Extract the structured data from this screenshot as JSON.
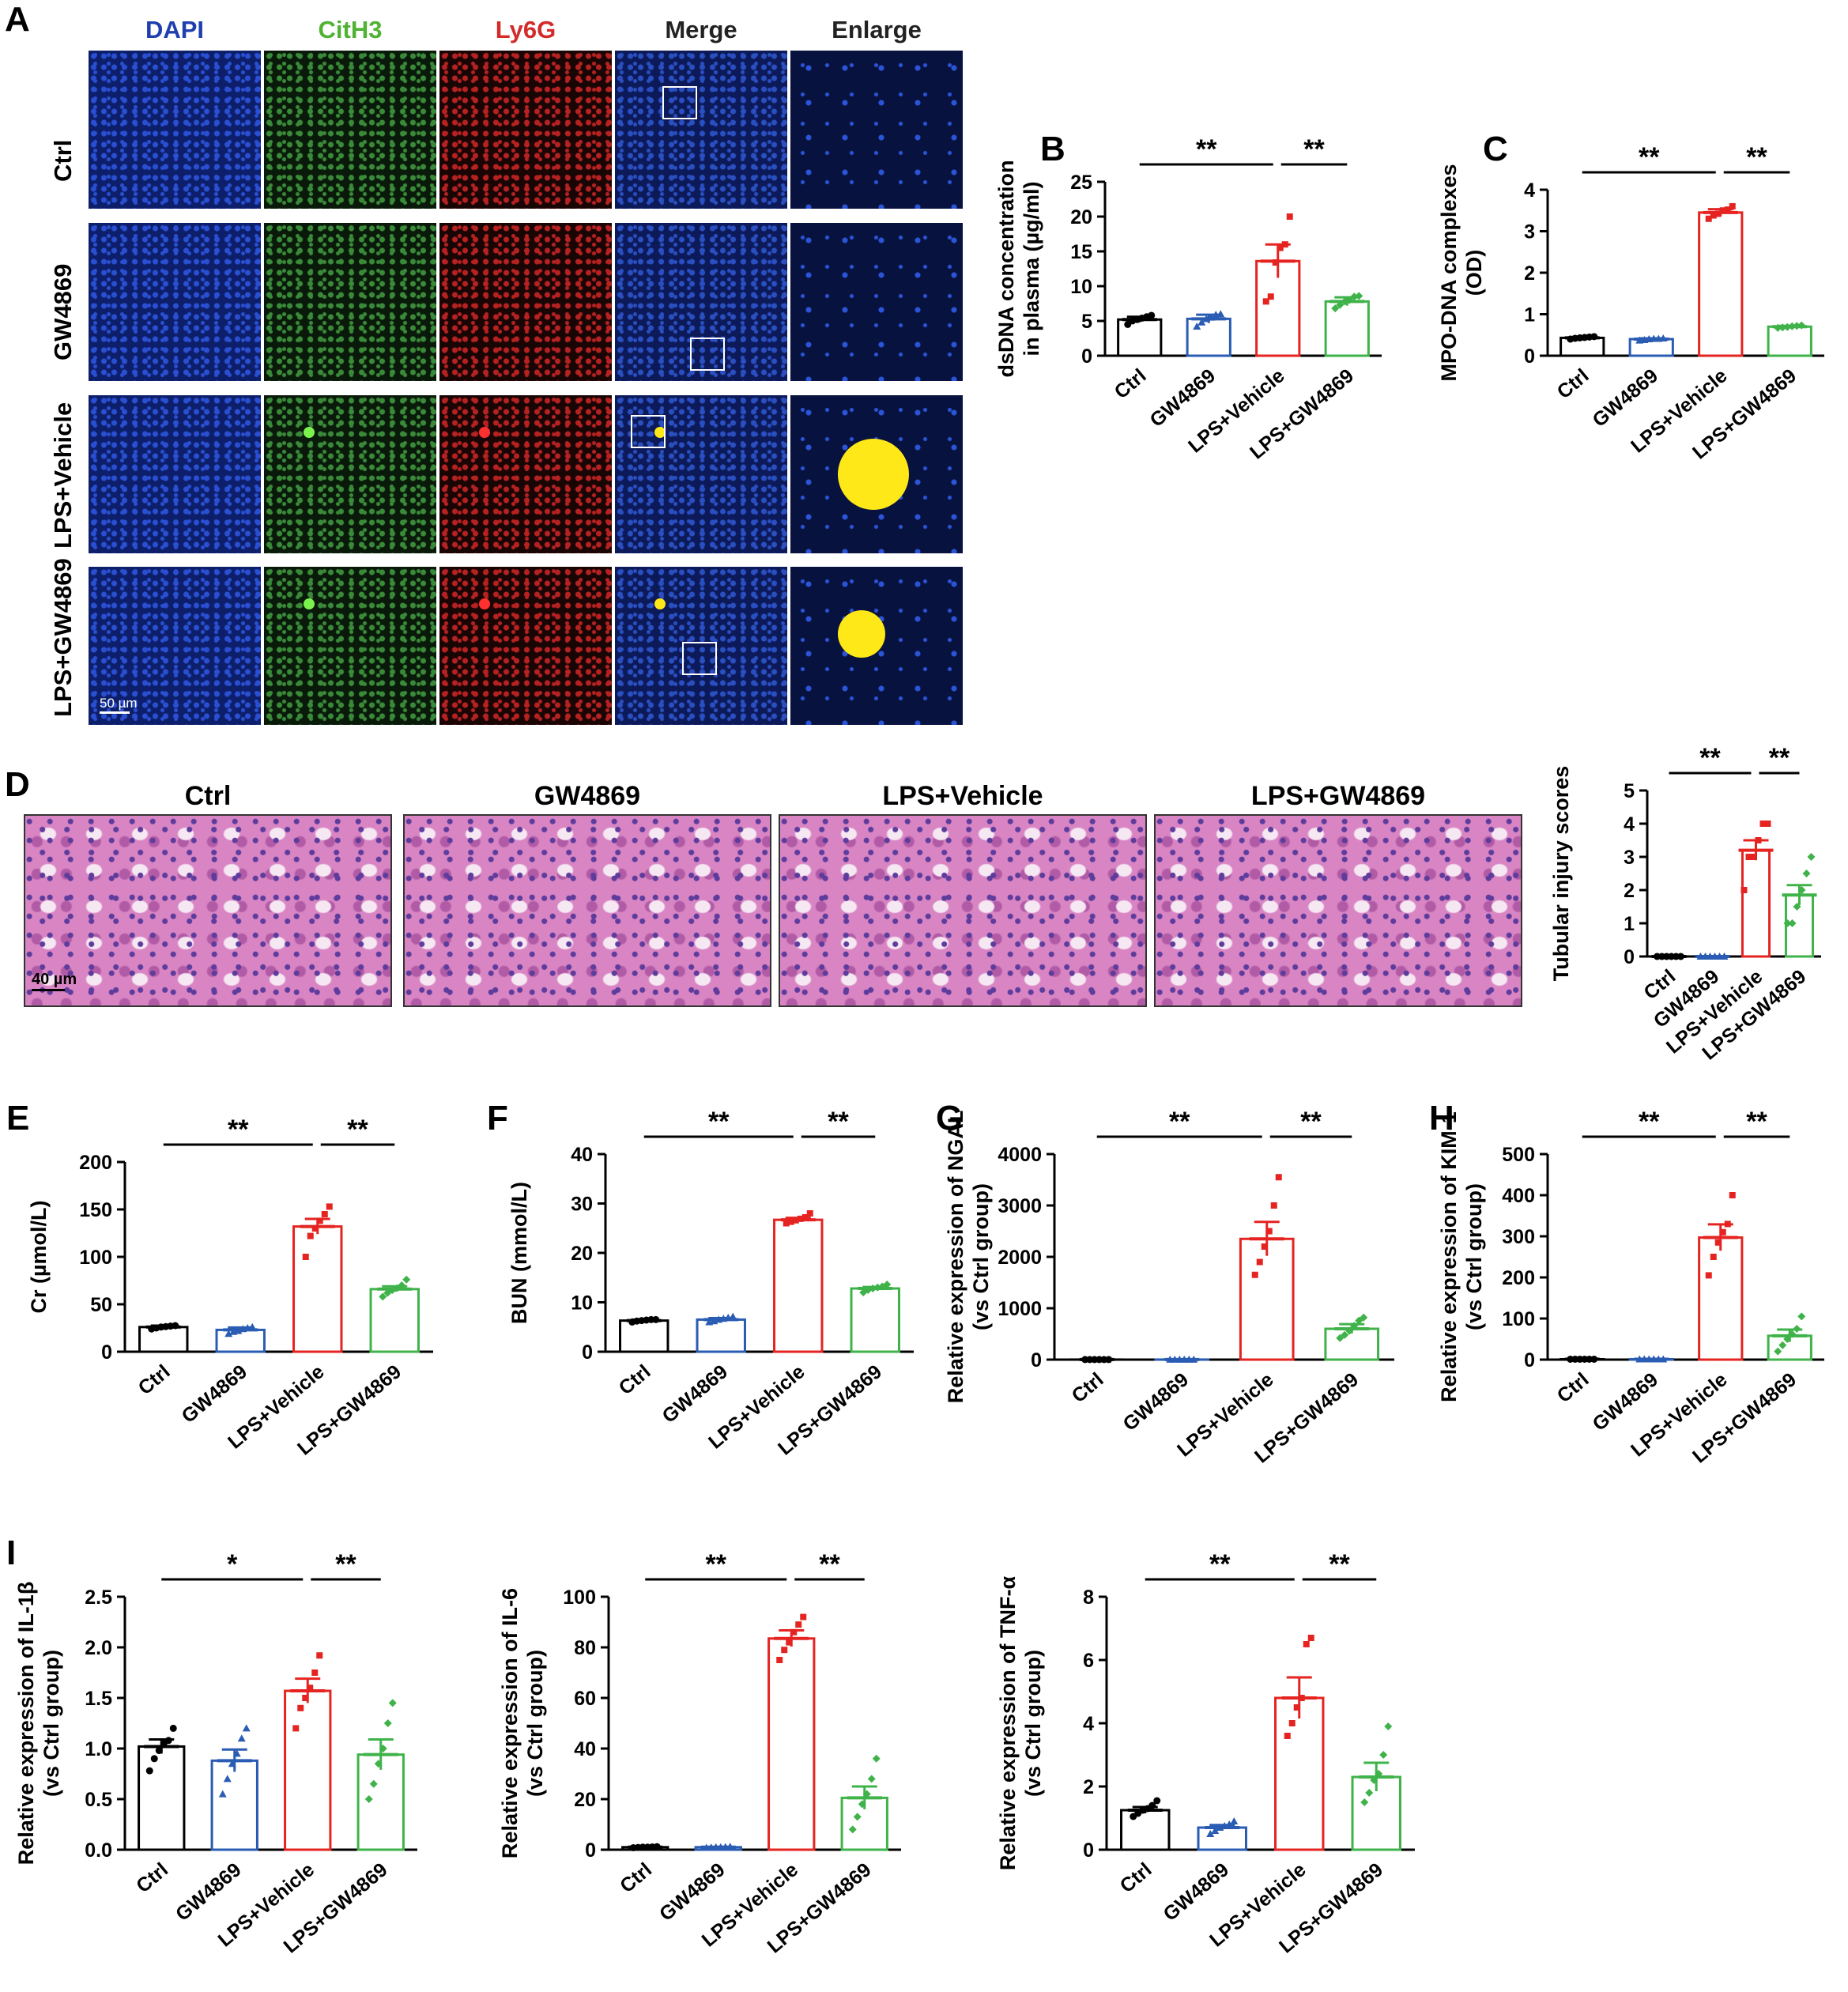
{
  "panel_a": {
    "letter": "A",
    "columns": [
      {
        "label": "DAPI",
        "color": "#1f3fb0"
      },
      {
        "label": "CitH3",
        "color": "#4fb233"
      },
      {
        "label": "Ly6G",
        "color": "#d42a2a"
      },
      {
        "label": "Merge",
        "color": "#222222"
      },
      {
        "label": "Enlarge",
        "color": "#222222"
      }
    ],
    "rows": [
      "Ctrl",
      "GW4869",
      "LPS+Vehicle",
      "LPS+GW4869"
    ],
    "scalebar": "50 µm"
  },
  "panel_d": {
    "letter": "D",
    "images": [
      "Ctrl",
      "GW4869",
      "LPS+Vehicle",
      "LPS+GW4869"
    ],
    "scalebar": "40 µm"
  },
  "colors": {
    "Ctrl": "#000000",
    "GW4869": "#2a5cb3",
    "LPS+Vehicle": "#e52421",
    "LPS+GW4869": "#3fb34a"
  },
  "chart_data": [
    {
      "id": "B",
      "letter": "B",
      "type": "bar",
      "categories": [
        "Ctrl",
        "GW4869",
        "LPS+Vehicle",
        "LPS+GW4869"
      ],
      "values": [
        5.2,
        5.3,
        13.6,
        7.8
      ],
      "errors": [
        0.4,
        0.6,
        2.4,
        0.6
      ],
      "points": [
        [
          4.5,
          5.0,
          5.2,
          5.4,
          5.6,
          5.8
        ],
        [
          4.2,
          4.8,
          5.3,
          5.5,
          5.9,
          6.0
        ],
        [
          7.8,
          8.5,
          13.4,
          15.5,
          16.0,
          20.0
        ],
        [
          6.8,
          7.3,
          7.8,
          8.0,
          8.5,
          8.6
        ]
      ],
      "ylabel": [
        "dsDNA concentration",
        "in plasma (µg/ml)"
      ],
      "ylim": [
        0,
        25
      ],
      "ticks": [
        0,
        5,
        10,
        15,
        20,
        25
      ],
      "sig": [
        {
          "from": 0,
          "to": 2,
          "label": "**"
        },
        {
          "from": 2,
          "to": 3,
          "label": "**"
        }
      ]
    },
    {
      "id": "C",
      "letter": "C",
      "type": "bar",
      "categories": [
        "Ctrl",
        "GW4869",
        "LPS+Vehicle",
        "LPS+GW4869"
      ],
      "values": [
        0.43,
        0.4,
        3.45,
        0.7
      ],
      "errors": [
        0.02,
        0.02,
        0.08,
        0.02
      ],
      "points": [
        [
          0.4,
          0.42,
          0.43,
          0.44,
          0.45,
          0.46
        ],
        [
          0.37,
          0.38,
          0.4,
          0.41,
          0.41,
          0.42
        ],
        [
          3.3,
          3.38,
          3.42,
          3.5,
          3.52,
          3.6
        ],
        [
          0.67,
          0.68,
          0.69,
          0.71,
          0.72,
          0.73
        ]
      ],
      "ylabel": [
        "MPO-DNA complexes",
        "(OD)"
      ],
      "ylim": [
        0,
        4
      ],
      "ticks": [
        0,
        1,
        2,
        3,
        4
      ],
      "sig": [
        {
          "from": 0,
          "to": 2,
          "label": "**"
        },
        {
          "from": 2,
          "to": 3,
          "label": "**"
        }
      ]
    },
    {
      "id": "Dchart",
      "letter": "",
      "type": "bar",
      "categories": [
        "Ctrl",
        "GW4869",
        "LPS+Vehicle",
        "LPS+GW4869"
      ],
      "values": [
        0,
        0,
        3.2,
        1.85
      ],
      "errors": [
        0,
        0,
        0.3,
        0.3
      ],
      "points": [
        [
          0,
          0,
          0,
          0,
          0,
          0
        ],
        [
          0,
          0,
          0,
          0,
          0,
          0
        ],
        [
          2.0,
          3.0,
          3.0,
          3.5,
          4.0,
          4.0
        ],
        [
          1.0,
          1.0,
          1.5,
          2.0,
          2.5,
          3.0
        ]
      ],
      "ylabel": [
        "Tubular injury scores"
      ],
      "ylim": [
        0,
        5
      ],
      "ticks": [
        0,
        1,
        2,
        3,
        4,
        5
      ],
      "sig": [
        {
          "from": 0,
          "to": 2,
          "label": "**"
        },
        {
          "from": 2,
          "to": 3,
          "label": "**"
        }
      ]
    },
    {
      "id": "E",
      "letter": "E",
      "type": "bar",
      "categories": [
        "Ctrl",
        "GW4869",
        "LPS+Vehicle",
        "LPS+GW4869"
      ],
      "values": [
        26,
        23,
        132,
        66
      ],
      "errors": [
        1.5,
        2.5,
        8,
        3
      ],
      "points": [
        [
          24,
          25,
          26,
          26.5,
          27,
          27.5
        ],
        [
          19,
          21,
          22,
          24,
          25,
          26
        ],
        [
          100,
          122,
          130,
          138,
          145,
          153
        ],
        [
          58,
          62,
          65,
          67,
          70,
          76
        ]
      ],
      "ylabel": [
        "Cr (µmol/L)"
      ],
      "ylim": [
        0,
        200
      ],
      "ticks": [
        0,
        50,
        100,
        150,
        200
      ],
      "sig": [
        {
          "from": 0,
          "to": 2,
          "label": "**"
        },
        {
          "from": 2,
          "to": 3,
          "label": "**"
        }
      ]
    },
    {
      "id": "F",
      "letter": "F",
      "type": "bar",
      "categories": [
        "Ctrl",
        "GW4869",
        "LPS+Vehicle",
        "LPS+GW4869"
      ],
      "values": [
        6.3,
        6.5,
        26.7,
        12.8
      ],
      "errors": [
        0.2,
        0.3,
        0.4,
        0.3
      ],
      "points": [
        [
          6.0,
          6.2,
          6.3,
          6.4,
          6.5,
          6.5
        ],
        [
          6.0,
          6.2,
          6.5,
          6.7,
          6.9,
          7.1
        ],
        [
          26.0,
          26.3,
          26.6,
          26.9,
          27.2,
          28.0
        ],
        [
          12.0,
          12.5,
          12.8,
          13.0,
          13.2,
          13.6
        ]
      ],
      "ylabel": [
        "BUN (mmol/L)"
      ],
      "ylim": [
        0,
        40
      ],
      "ticks": [
        0,
        10,
        20,
        30,
        40
      ],
      "sig": [
        {
          "from": 0,
          "to": 2,
          "label": "**"
        },
        {
          "from": 2,
          "to": 3,
          "label": "**"
        }
      ]
    },
    {
      "id": "G",
      "letter": "G",
      "type": "bar",
      "categories": [
        "Ctrl",
        "GW4869",
        "LPS+Vehicle",
        "LPS+GW4869"
      ],
      "values": [
        1,
        1,
        2350,
        600
      ],
      "errors": [
        0,
        0,
        330,
        90
      ],
      "points": [
        [
          1,
          1,
          1,
          1,
          1,
          1
        ],
        [
          1,
          1,
          1,
          1,
          1,
          1
        ],
        [
          1650,
          1900,
          2200,
          2500,
          3000,
          3550
        ],
        [
          420,
          480,
          560,
          660,
          760,
          820
        ]
      ],
      "ylabel": [
        "Relative expression of NGAL",
        "(vs Ctrl group)"
      ],
      "ylim": [
        0,
        4000
      ],
      "ticks": [
        0,
        1000,
        2000,
        3000,
        4000
      ],
      "sig": [
        {
          "from": 0,
          "to": 2,
          "label": "**"
        },
        {
          "from": 2,
          "to": 3,
          "label": "**"
        }
      ]
    },
    {
      "id": "H",
      "letter": "H",
      "type": "bar",
      "categories": [
        "Ctrl",
        "GW4869",
        "LPS+Vehicle",
        "LPS+GW4869"
      ],
      "values": [
        1,
        1,
        297,
        58
      ],
      "errors": [
        0,
        0,
        32,
        15
      ],
      "points": [
        [
          1,
          1,
          1,
          1,
          1,
          1
        ],
        [
          1,
          1,
          1,
          1,
          1,
          1
        ],
        [
          205,
          250,
          285,
          310,
          330,
          400
        ],
        [
          20,
          35,
          50,
          62,
          75,
          105
        ]
      ],
      "ylabel": [
        "Relative expression of KIM-1",
        "(vs Ctrl group)"
      ],
      "ylim": [
        0,
        500
      ],
      "ticks": [
        0,
        100,
        200,
        300,
        400,
        500
      ],
      "sig": [
        {
          "from": 0,
          "to": 2,
          "label": "**"
        },
        {
          "from": 2,
          "to": 3,
          "label": "**"
        }
      ]
    },
    {
      "id": "I1",
      "letter": "I",
      "type": "bar",
      "categories": [
        "Ctrl",
        "GW4869",
        "LPS+Vehicle",
        "LPS+GW4869"
      ],
      "values": [
        1.02,
        0.88,
        1.57,
        0.94
      ],
      "errors": [
        0.07,
        0.11,
        0.12,
        0.15
      ],
      "points": [
        [
          0.78,
          0.9,
          0.98,
          1.05,
          1.08,
          1.2
        ],
        [
          0.55,
          0.7,
          0.85,
          0.95,
          1.1,
          1.2
        ],
        [
          1.2,
          1.4,
          1.5,
          1.6,
          1.75,
          1.92
        ],
        [
          0.5,
          0.65,
          0.85,
          1.0,
          1.25,
          1.45
        ]
      ],
      "ylabel": [
        "Relative expression of IL-1β",
        "(vs Ctrl group)"
      ],
      "ylim": [
        0,
        2.5
      ],
      "ticks": [
        0.0,
        0.5,
        1.0,
        1.5,
        2.0,
        2.5
      ],
      "tickfmt": 1,
      "sig": [
        {
          "from": 0,
          "to": 2,
          "label": "*"
        },
        {
          "from": 2,
          "to": 3,
          "label": "**"
        }
      ]
    },
    {
      "id": "I2",
      "letter": "",
      "type": "bar",
      "categories": [
        "Ctrl",
        "GW4869",
        "LPS+Vehicle",
        "LPS+GW4869"
      ],
      "values": [
        1,
        1,
        83.5,
        20.5
      ],
      "errors": [
        0.1,
        0.1,
        3.2,
        4.5
      ],
      "points": [
        [
          0.8,
          0.9,
          1.0,
          1.0,
          1.1,
          1.2
        ],
        [
          0.8,
          0.9,
          1.0,
          1.0,
          1.1,
          1.2
        ],
        [
          75,
          79,
          82,
          86,
          89,
          92
        ],
        [
          8,
          13,
          18,
          22,
          28,
          36
        ]
      ],
      "ylabel": [
        "Relative expression of IL-6",
        "(vs Ctrl group)"
      ],
      "ylim": [
        0,
        100
      ],
      "ticks": [
        0,
        20,
        40,
        60,
        80,
        100
      ],
      "sig": [
        {
          "from": 0,
          "to": 2,
          "label": "**"
        },
        {
          "from": 2,
          "to": 3,
          "label": "**"
        }
      ]
    },
    {
      "id": "I3",
      "letter": "",
      "type": "bar",
      "categories": [
        "Ctrl",
        "GW4869",
        "LPS+Vehicle",
        "LPS+GW4869"
      ],
      "values": [
        1.25,
        0.7,
        4.8,
        2.3
      ],
      "errors": [
        0.1,
        0.08,
        0.65,
        0.45
      ],
      "points": [
        [
          1.05,
          1.15,
          1.25,
          1.3,
          1.4,
          1.55
        ],
        [
          0.5,
          0.6,
          0.7,
          0.75,
          0.8,
          0.9
        ],
        [
          3.6,
          4.0,
          4.5,
          4.8,
          6.5,
          6.7
        ],
        [
          1.5,
          1.8,
          2.2,
          2.4,
          3.0,
          3.9
        ]
      ],
      "ylabel": [
        "Relative expression of TNF-α",
        "(vs Ctrl group)"
      ],
      "ylim": [
        0,
        8
      ],
      "ticks": [
        0,
        2,
        4,
        6,
        8
      ],
      "sig": [
        {
          "from": 0,
          "to": 2,
          "label": "**"
        },
        {
          "from": 2,
          "to": 3,
          "label": "**"
        }
      ]
    }
  ]
}
